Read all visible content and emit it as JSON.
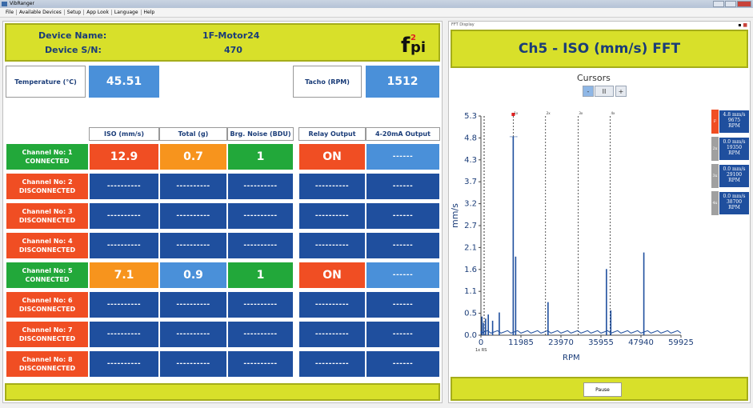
{
  "window": {
    "title": "VibRanger"
  },
  "menu": [
    "File",
    "Available Devices",
    "Setup",
    "App Look",
    "Language",
    "Help"
  ],
  "device": {
    "name_label": "Device Name:",
    "name_value": "1F-Motor24",
    "sn_label": "Device S/N:",
    "sn_value": "470",
    "logo_text": "f2pi"
  },
  "readings": {
    "temperature_label": "Temperature (°C)",
    "temperature_value": "45.51",
    "tacho_label": "Tacho (RPM)",
    "tacho_value": "1512"
  },
  "table": {
    "headers": [
      "ISO (mm/s)",
      "Total (g)",
      "Brg. Noise (BDU)",
      "Relay Output",
      "4-20mA Output"
    ],
    "channels": [
      {
        "name": "Channel No: 1",
        "status": "CONNECTED",
        "status_color": "#22a83a",
        "iso": "12.9",
        "iso_color": "#f04e23",
        "total": "0.7",
        "total_color": "#f7941d",
        "brg": "1",
        "brg_color": "#22a83a",
        "relay": "ON",
        "relay_color": "#f04e23",
        "ma": "------",
        "ma_color": "#4a90d9"
      },
      {
        "name": "Channel No: 2",
        "status": "DISCONNECTED",
        "status_color": "#f04e23",
        "iso": "----------",
        "total": "----------",
        "brg": "----------",
        "relay": "----------",
        "ma": "------"
      },
      {
        "name": "Channel No: 3",
        "status": "DISCONNECTED",
        "status_color": "#f04e23",
        "iso": "----------",
        "total": "----------",
        "brg": "----------",
        "relay": "----------",
        "ma": "------"
      },
      {
        "name": "Channel No: 4",
        "status": "DISCONNECTED",
        "status_color": "#f04e23",
        "iso": "----------",
        "total": "----------",
        "brg": "----------",
        "relay": "----------",
        "ma": "------"
      },
      {
        "name": "Channel No: 5",
        "status": "CONNECTED",
        "status_color": "#22a83a",
        "iso": "7.1",
        "iso_color": "#f7941d",
        "total": "0.9",
        "total_color": "#4a90d9",
        "brg": "1",
        "brg_color": "#22a83a",
        "relay": "ON",
        "relay_color": "#f04e23",
        "ma": "------",
        "ma_color": "#4a90d9"
      },
      {
        "name": "Channel No: 6",
        "status": "DISCONNECTED",
        "status_color": "#f04e23",
        "iso": "----------",
        "total": "----------",
        "brg": "----------",
        "relay": "----------",
        "ma": "------"
      },
      {
        "name": "Channel No: 7",
        "status": "DISCONNECTED",
        "status_color": "#f04e23",
        "iso": "----------",
        "total": "----------",
        "brg": "----------",
        "relay": "----------",
        "ma": "------"
      },
      {
        "name": "Channel No: 8",
        "status": "DISCONNECTED",
        "status_color": "#f04e23",
        "iso": "----------",
        "total": "----------",
        "brg": "----------",
        "relay": "----------",
        "ma": "------"
      }
    ]
  },
  "fft": {
    "panel_label": "FFT Display",
    "title": "Ch5 - ISO (mm/s) FFT",
    "cursors_label": "Cursors",
    "cursor_buttons": [
      "-",
      "II",
      "+"
    ],
    "pause_label": "Pause",
    "markers": [
      {
        "tag": "F",
        "color": "#f04e23",
        "text1": "4.8 mm/s",
        "text2": "9675",
        "text3": "RPM"
      },
      {
        "tag": "2x",
        "color": "#a0a0a0",
        "text1": "0.0 mm/s",
        "text2": "19350",
        "text3": "RPM"
      },
      {
        "tag": "3x",
        "color": "#a0a0a0",
        "text1": "0.0 mm/s",
        "text2": "29100",
        "text3": "RPM"
      },
      {
        "tag": "4x",
        "color": "#a0a0a0",
        "text1": "0.0 mm/s",
        "text2": "38700",
        "text3": "RPM"
      }
    ]
  },
  "chart_data": {
    "type": "line",
    "xlabel": "RPM",
    "ylabel": "mm/s",
    "x_ticks": [
      "0",
      "11985",
      "23970",
      "35955",
      "47940",
      "59925"
    ],
    "y_ticks": [
      "0.0",
      "0.5",
      "1.1",
      "1.6",
      "2.1",
      "2.7",
      "3.2",
      "3.7",
      "4.3",
      "4.8",
      "5.3"
    ],
    "xlim": [
      0,
      59925
    ],
    "ylim": [
      0,
      5.3
    ],
    "x_marker_label": "1x RS",
    "cursor_labels": [
      "1x",
      "2x",
      "3x",
      "4x"
    ],
    "cursor_x": [
      9675,
      19350,
      29100,
      38700
    ],
    "peaks": [
      {
        "x": 300,
        "y": 0.45
      },
      {
        "x": 800,
        "y": 0.3
      },
      {
        "x": 1400,
        "y": 0.4
      },
      {
        "x": 2200,
        "y": 0.5
      },
      {
        "x": 3500,
        "y": 0.35
      },
      {
        "x": 5500,
        "y": 0.55
      },
      {
        "x": 9675,
        "y": 4.8
      },
      {
        "x": 10400,
        "y": 1.9
      },
      {
        "x": 20100,
        "y": 0.8
      },
      {
        "x": 37600,
        "y": 1.6
      },
      {
        "x": 38900,
        "y": 0.6
      },
      {
        "x": 48800,
        "y": 2.0
      }
    ]
  }
}
